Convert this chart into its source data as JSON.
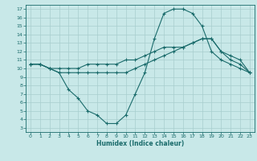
{
  "xlabel": "Humidex (Indice chaleur)",
  "bg_color": "#c8e8e8",
  "line_color": "#1a6b6b",
  "grid_color": "#a8cece",
  "xlim": [
    -0.5,
    23.5
  ],
  "ylim": [
    2.5,
    17.5
  ],
  "yticks": [
    3,
    4,
    5,
    6,
    7,
    8,
    9,
    10,
    11,
    12,
    13,
    14,
    15,
    16,
    17
  ],
  "xticks": [
    0,
    1,
    2,
    3,
    4,
    5,
    6,
    7,
    8,
    9,
    10,
    11,
    12,
    13,
    14,
    15,
    16,
    17,
    18,
    19,
    20,
    21,
    22,
    23
  ],
  "line1_x": [
    0,
    1,
    2,
    3,
    4,
    5,
    6,
    7,
    8,
    9,
    10,
    11,
    12,
    13,
    14,
    15,
    16,
    17,
    18,
    19,
    20,
    21,
    22,
    23
  ],
  "line1_y": [
    10.5,
    10.5,
    10.0,
    9.5,
    7.5,
    6.5,
    5.0,
    4.5,
    3.5,
    3.5,
    4.5,
    7.0,
    9.5,
    13.5,
    16.5,
    17.0,
    17.0,
    16.5,
    15.0,
    12.0,
    11.0,
    10.5,
    10.0,
    9.5
  ],
  "line2_x": [
    0,
    1,
    2,
    3,
    4,
    5,
    6,
    7,
    8,
    9,
    10,
    11,
    12,
    13,
    14,
    15,
    16,
    17,
    18,
    19,
    20,
    21,
    22,
    23
  ],
  "line2_y": [
    10.5,
    10.5,
    10.0,
    9.5,
    9.5,
    9.5,
    9.5,
    9.5,
    9.5,
    9.5,
    9.5,
    10.0,
    10.5,
    11.0,
    11.5,
    12.0,
    12.5,
    13.0,
    13.5,
    13.5,
    12.0,
    11.0,
    10.5,
    9.5
  ],
  "line3_x": [
    0,
    1,
    2,
    3,
    4,
    5,
    6,
    7,
    8,
    9,
    10,
    11,
    12,
    13,
    14,
    15,
    16,
    17,
    18,
    19,
    20,
    21,
    22,
    23
  ],
  "line3_y": [
    10.5,
    10.5,
    10.0,
    10.0,
    10.0,
    10.0,
    10.5,
    10.5,
    10.5,
    10.5,
    11.0,
    11.0,
    11.5,
    12.0,
    12.5,
    12.5,
    12.5,
    13.0,
    13.5,
    13.5,
    12.0,
    11.5,
    11.0,
    9.5
  ],
  "tick_fontsize": 4.5,
  "xlabel_fontsize": 5.5,
  "xlabel_fontweight": "bold"
}
